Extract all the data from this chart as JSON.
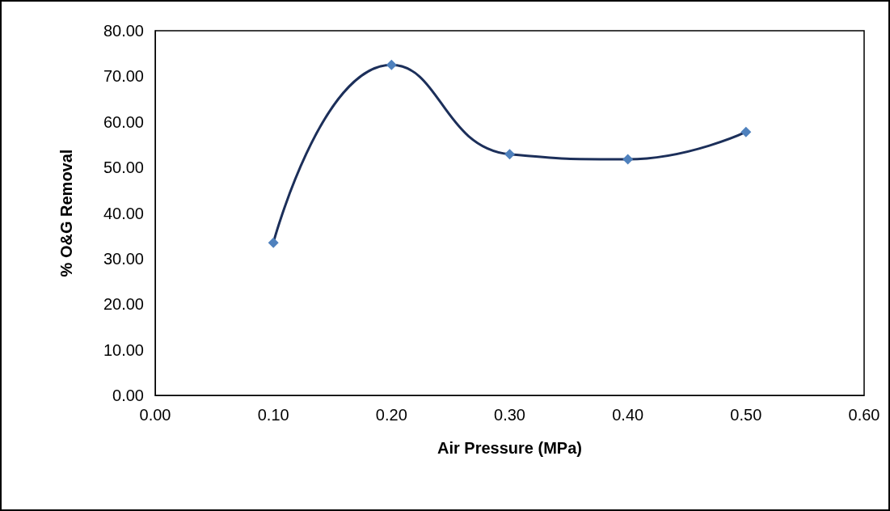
{
  "chart_data": {
    "type": "line",
    "xlabel": "Air Pressure (MPa)",
    "ylabel": "% O&G Removal",
    "x": [
      0.1,
      0.2,
      0.3,
      0.4,
      0.5
    ],
    "series": [
      {
        "color": "#4f81bd",
        "values": [
          33.5,
          72.5,
          52.9,
          51.8,
          57.8
        ]
      }
    ],
    "xlim": [
      0,
      0.6
    ],
    "xticks": [
      {
        "value": 0,
        "label": "0.00"
      },
      {
        "value": 0.1,
        "label": "0.10"
      },
      {
        "value": 0.2,
        "label": "0.20"
      },
      {
        "value": 0.3,
        "label": "0.30"
      },
      {
        "value": 0.4,
        "label": "0.40"
      },
      {
        "value": 0.5,
        "label": "0.50"
      },
      {
        "value": 0.6,
        "label": "0.60"
      }
    ],
    "ylim": [
      0,
      80
    ],
    "yticks": [
      {
        "value": 0,
        "label": "0.00"
      },
      {
        "value": 10,
        "label": "10.00"
      },
      {
        "value": 20,
        "label": "20.00"
      },
      {
        "value": 30,
        "label": "30.00"
      },
      {
        "value": 40,
        "label": "40.00"
      },
      {
        "value": 50,
        "label": "50.00"
      },
      {
        "value": 60,
        "label": "60.00"
      },
      {
        "value": 70,
        "label": "70.00"
      },
      {
        "value": 80,
        "label": "80.00"
      }
    ],
    "marker": "diamond",
    "line_style": "solid"
  }
}
